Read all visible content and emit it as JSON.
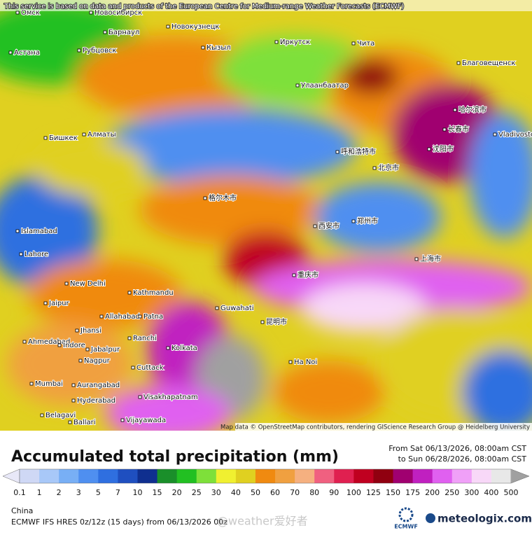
{
  "map": {
    "disclaimer": "This service is based on data and products of the European Centre for Medium-range Weather Forecasts (ECMWF)",
    "attribution": "Map data © OpenStreetMap contributors, rendering GIScience Research Group @ Heidelberg University",
    "cities": [
      "Омск",
      "Новосибирск",
      "Барнаул",
      "Новокузнецк",
      "Рубцовск",
      "Астана",
      "Кызыл",
      "Иркутск",
      "Чита",
      "Улаанбаатар",
      "Благовещенск",
      "Алматы",
      "Бишкек",
      "哈尔滨市",
      "长春市",
      "沈阳市",
      "Vladivostok",
      "呼和浩特市",
      "北京市",
      "格尔木市",
      "Islamabad",
      "Lahore",
      "New Delhi",
      "Kathmandu",
      "Guwahati",
      "Jaipur",
      "Allahabad",
      "Patna",
      "Jhansi",
      "Ranchi",
      "Ahmedabad",
      "Indore",
      "Kolkata",
      "Jabalpur",
      "Nagpur",
      "Cuttack",
      "Mumbai",
      "Aurangabad",
      "Hyderabad",
      "Visakhapatnam",
      "Vijayawada",
      "Belagavi",
      "Ballari",
      "Ha Noi",
      "上海市",
      "重庆市",
      "昆明市",
      "西安市",
      "郑州市"
    ]
  },
  "legend": {
    "title": "Accumulated total precipitation (mm)",
    "from": "From Sat 06/13/2026, 08:00am CST",
    "to": "to Sun 06/28/2026, 08:00am CST",
    "labels": [
      0.1,
      1,
      2,
      3,
      5,
      7,
      10,
      15,
      20,
      25,
      30,
      40,
      50,
      60,
      70,
      80,
      90,
      100,
      125,
      150,
      175,
      200,
      250,
      300,
      400,
      500
    ],
    "colors": [
      "#cfd8f5",
      "#a8c8f8",
      "#78aff5",
      "#4f8ff0",
      "#2f6fe0",
      "#1f4fc0",
      "#0f2f8f",
      "#1a8f2a",
      "#22c022",
      "#7ee03a",
      "#f0f030",
      "#e0d020",
      "#f08a10",
      "#f0a040",
      "#f5b080",
      "#f06080",
      "#e02050",
      "#c00020",
      "#900010",
      "#a00070",
      "#c020c0",
      "#e060f0",
      "#f0a0f8",
      "#f8d8f8",
      "#e8e8e8"
    ]
  },
  "footer": {
    "region": "China",
    "model": "ECMWF IFS HRES 0z/12z (15 days) from 06/13/2026 00z",
    "watermark": "@weather爱好者",
    "ecmwf_logo": "ECMWF",
    "brand": "meteologix.com"
  }
}
